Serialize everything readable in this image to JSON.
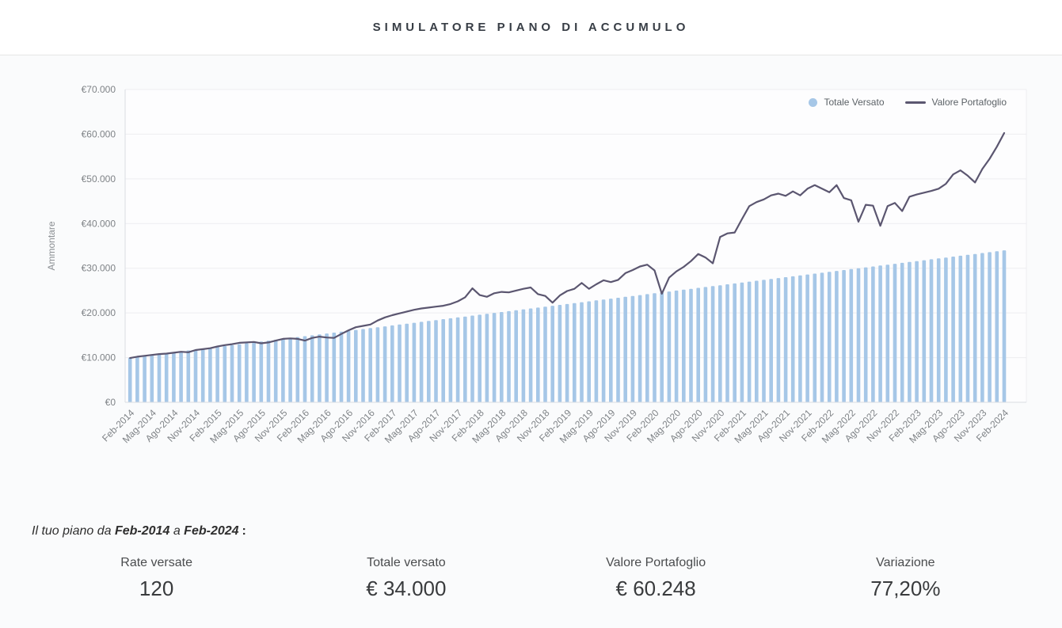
{
  "header": {
    "title": "SIMULATORE PIANO DI ACCUMULO"
  },
  "chart_data": {
    "type": "bar+line",
    "title": "",
    "xlabel": "",
    "ylabel": "Ammontare",
    "ylim": [
      0,
      70000
    ],
    "grid": true,
    "legend_position": "top-right",
    "y_tick_labels": [
      "€0",
      "€10.000",
      "€20.000",
      "€30.000",
      "€40.000",
      "€50.000",
      "€60.000",
      "€70.000"
    ],
    "x_tick_labels": [
      "Feb-2014",
      "Mag-2014",
      "Ago-2014",
      "Nov-2014",
      "Feb-2015",
      "Mag-2015",
      "Ago-2015",
      "Nov-2015",
      "Feb-2016",
      "Mag-2016",
      "Ago-2016",
      "Nov-2016",
      "Feb-2017",
      "Mag-2017",
      "Ago-2017",
      "Nov-2017",
      "Feb-2018",
      "Mag-2018",
      "Ago-2018",
      "Nov-2018",
      "Feb-2019",
      "Mag-2019",
      "Ago-2019",
      "Nov-2019",
      "Feb-2020",
      "Mag-2020",
      "Ago-2020",
      "Nov-2020",
      "Feb-2021",
      "Mag-2021",
      "Ago-2021",
      "Nov-2021",
      "Feb-2022",
      "Mag-2022",
      "Ago-2022",
      "Nov-2022",
      "Feb-2023",
      "Mag-2023",
      "Ago-2023",
      "Nov-2023",
      "Feb-2024"
    ],
    "x_ticks_every_n_months": 3,
    "series": [
      {
        "name": "Totale Versato",
        "type": "bar",
        "color": "#a6c7e7",
        "values": [
          10000,
          10200,
          10400,
          10600,
          10800,
          11000,
          11200,
          11400,
          11600,
          11800,
          12000,
          12200,
          12400,
          12600,
          12800,
          13000,
          13200,
          13400,
          13600,
          13800,
          14000,
          14200,
          14400,
          14600,
          14800,
          15000,
          15200,
          15400,
          15600,
          15800,
          16000,
          16200,
          16400,
          16600,
          16800,
          17000,
          17200,
          17400,
          17600,
          17800,
          18000,
          18200,
          18400,
          18600,
          18800,
          19000,
          19200,
          19400,
          19600,
          19800,
          20000,
          20200,
          20400,
          20600,
          20800,
          21000,
          21200,
          21400,
          21600,
          21800,
          22000,
          22200,
          22400,
          22600,
          22800,
          23000,
          23200,
          23400,
          23600,
          23800,
          24000,
          24200,
          24400,
          24600,
          24800,
          25000,
          25200,
          25400,
          25600,
          25800,
          26000,
          26200,
          26400,
          26600,
          26800,
          27000,
          27200,
          27400,
          27600,
          27800,
          28000,
          28200,
          28400,
          28600,
          28800,
          29000,
          29200,
          29400,
          29600,
          29800,
          30000,
          30200,
          30400,
          30600,
          30800,
          31000,
          31200,
          31400,
          31600,
          31800,
          32000,
          32200,
          32400,
          32600,
          32800,
          33000,
          33200,
          33400,
          33600,
          33800,
          34000
        ]
      },
      {
        "name": "Valore Portafoglio",
        "type": "line",
        "color": "#5b5670",
        "values": [
          9900,
          10200,
          10400,
          10600,
          10800,
          10900,
          11100,
          11300,
          11200,
          11700,
          11900,
          12100,
          12500,
          12800,
          13000,
          13300,
          13400,
          13500,
          13200,
          13400,
          13800,
          14200,
          14300,
          14200,
          13800,
          14400,
          14700,
          14500,
          14400,
          15300,
          16100,
          16800,
          17100,
          17400,
          18300,
          19000,
          19500,
          19900,
          20300,
          20700,
          21000,
          21200,
          21400,
          21600,
          22000,
          22600,
          23500,
          25500,
          24000,
          23600,
          24400,
          24700,
          24600,
          25000,
          25400,
          25700,
          24200,
          23800,
          22300,
          23900,
          24900,
          25400,
          26700,
          25400,
          26400,
          27300,
          26900,
          27400,
          28900,
          29600,
          30400,
          30800,
          29500,
          24300,
          27900,
          29300,
          30300,
          31600,
          33200,
          32400,
          31100,
          37000,
          37800,
          38000,
          41000,
          43900,
          44800,
          45400,
          46300,
          46700,
          46200,
          47200,
          46300,
          47800,
          48600,
          47800,
          47000,
          48600,
          45700,
          45200,
          40400,
          44200,
          44000,
          39500,
          43900,
          44600,
          42800,
          46000,
          46500,
          46900,
          47300,
          47800,
          48900,
          51000,
          51900,
          50700,
          49200,
          52200,
          54500,
          57200,
          60248
        ]
      }
    ]
  },
  "summary": {
    "sentence": {
      "prefix": "Il tuo piano da",
      "from": "Feb-2014",
      "middle": "a",
      "to": "Feb-2024",
      "suffix": ":"
    },
    "stats": [
      {
        "label": "Rate versate",
        "value": "120"
      },
      {
        "label": "Totale versato",
        "value": "€ 34.000"
      },
      {
        "label": "Valore Portafoglio",
        "value": "€ 60.248"
      },
      {
        "label": "Variazione",
        "value": "77,20%"
      }
    ]
  },
  "colors": {
    "bar": "#a6c7e7",
    "line": "#5b5670",
    "grid": "#ededf1",
    "axis": "#d9dce2",
    "tick_text": "#7f8387",
    "title_text": "#373d45"
  }
}
